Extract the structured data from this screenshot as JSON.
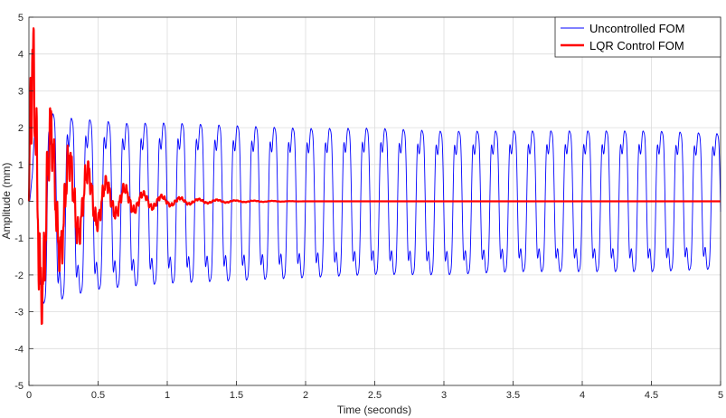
{
  "chart_data": {
    "type": "line",
    "title": "",
    "xlabel": "Time (seconds)",
    "ylabel": "Amplitude (mm)",
    "xlim": [
      0,
      5
    ],
    "ylim": [
      -5,
      5
    ],
    "xticks": [
      0,
      0.5,
      1,
      1.5,
      2,
      2.5,
      3,
      3.5,
      4,
      4.5,
      5
    ],
    "xtick_labels": [
      "0",
      "0.5",
      "1",
      "1.5",
      "2",
      "2.5",
      "3",
      "3.5",
      "4",
      "4.5",
      "5"
    ],
    "yticks": [
      -5,
      -4,
      -3,
      -2,
      -1,
      0,
      1,
      2,
      3,
      4,
      5
    ],
    "ytick_labels": [
      "-5",
      "-4",
      "-3",
      "-2",
      "-1",
      "0",
      "1",
      "2",
      "3",
      "4",
      "5"
    ],
    "grid": true,
    "legend_position": "top-right",
    "series": [
      {
        "name": "Uncontrolled FOM",
        "color": "#0000ff",
        "line_width": "thin",
        "description_of_shape": "sustained oscillation ~7.5 Hz with secondary ripple",
        "x": [
          0,
          0.05,
          0.15,
          0.3,
          0.5,
          0.7,
          1.0,
          1.5,
          2.0,
          2.5,
          3.0,
          3.5,
          4.0,
          4.5,
          5.0
        ],
        "upper_envelope": [
          0,
          3.0,
          3.2,
          3.0,
          2.9,
          2.8,
          2.8,
          2.7,
          2.6,
          2.6,
          2.5,
          2.5,
          2.5,
          2.5,
          2.4
        ],
        "lower_envelope": [
          0,
          -3.5,
          -3.6,
          -3.3,
          -3.1,
          -3.0,
          -2.9,
          -2.8,
          -2.7,
          -2.6,
          -2.6,
          -2.5,
          -2.5,
          -2.5,
          -2.4
        ],
        "frequency_hz": 7.5
      },
      {
        "name": "LQR Control FOM",
        "color": "#ff0000",
        "line_width": "thick",
        "description_of_shape": "decaying oscillation settling to 0 by ~1.5 s",
        "x": [
          0,
          0.01,
          0.04,
          0.1,
          0.15,
          0.2,
          0.3,
          0.4,
          0.5,
          0.6,
          0.8,
          1.0,
          1.2,
          1.5,
          2.0,
          5.0
        ],
        "upper_envelope": [
          0,
          4.7,
          4.7,
          2.8,
          2.7,
          2.0,
          1.5,
          1.2,
          0.8,
          0.6,
          0.3,
          0.15,
          0.08,
          0.03,
          0,
          0
        ],
        "lower_envelope": [
          0,
          -4.4,
          -3.5,
          -3.3,
          -2.6,
          -2.0,
          -1.5,
          -1.0,
          -0.8,
          -0.5,
          -0.3,
          -0.15,
          -0.08,
          -0.03,
          0,
          0
        ],
        "settles_to": 0
      }
    ]
  }
}
